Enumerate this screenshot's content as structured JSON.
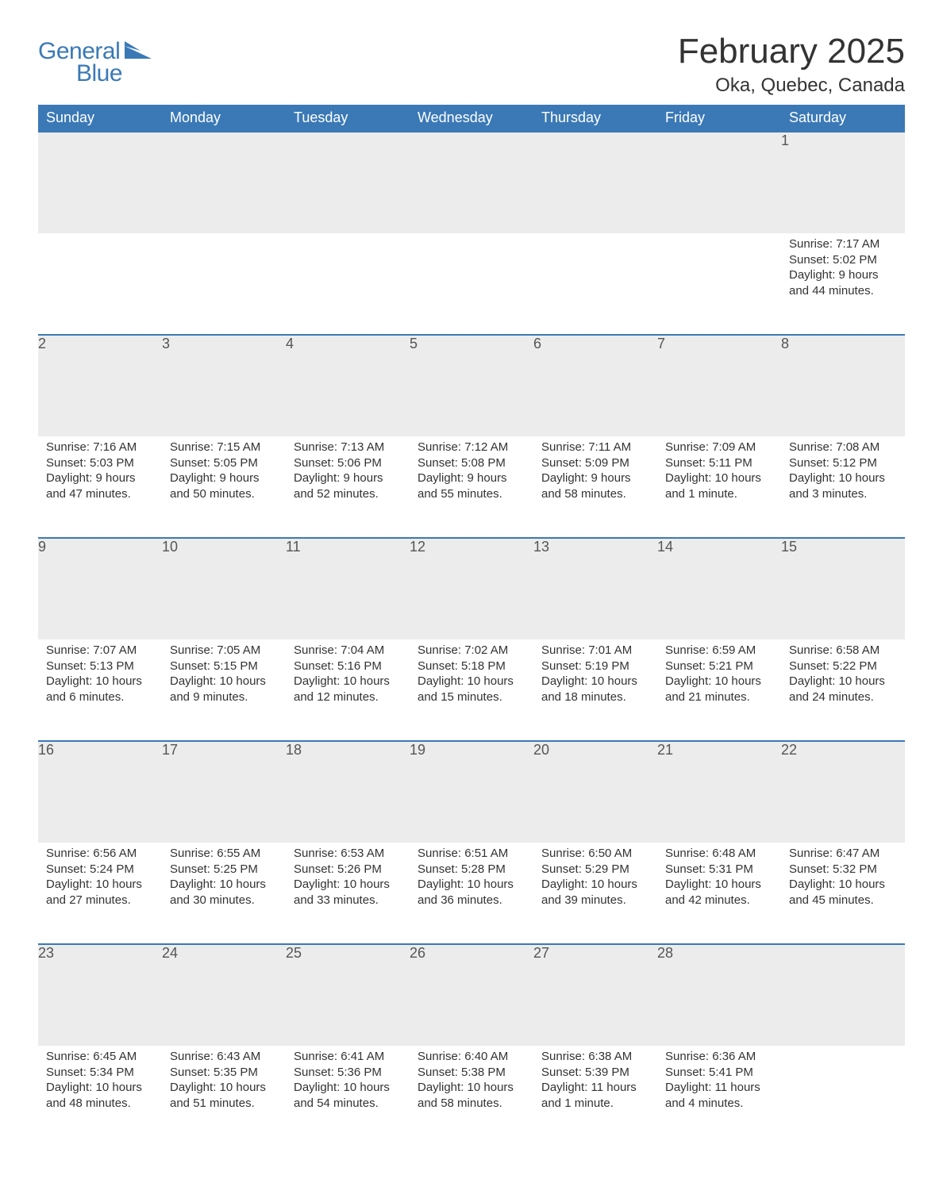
{
  "logo": {
    "word1": "General",
    "word2": "Blue"
  },
  "title": "February 2025",
  "location": "Oka, Quebec, Canada",
  "columns": [
    "Sunday",
    "Monday",
    "Tuesday",
    "Wednesday",
    "Thursday",
    "Friday",
    "Saturday"
  ],
  "colors": {
    "header_bg": "#3b79b6",
    "header_text": "#ffffff",
    "daynum_bg": "#ececec",
    "row_border": "#3b79b6",
    "body_text": "#333333",
    "logo_color": "#3b79b6"
  },
  "weeks": [
    [
      null,
      null,
      null,
      null,
      null,
      null,
      {
        "n": "1",
        "sr": "Sunrise: 7:17 AM",
        "ss": "Sunset: 5:02 PM",
        "dl": "Daylight: 9 hours and 44 minutes."
      }
    ],
    [
      {
        "n": "2",
        "sr": "Sunrise: 7:16 AM",
        "ss": "Sunset: 5:03 PM",
        "dl": "Daylight: 9 hours and 47 minutes."
      },
      {
        "n": "3",
        "sr": "Sunrise: 7:15 AM",
        "ss": "Sunset: 5:05 PM",
        "dl": "Daylight: 9 hours and 50 minutes."
      },
      {
        "n": "4",
        "sr": "Sunrise: 7:13 AM",
        "ss": "Sunset: 5:06 PM",
        "dl": "Daylight: 9 hours and 52 minutes."
      },
      {
        "n": "5",
        "sr": "Sunrise: 7:12 AM",
        "ss": "Sunset: 5:08 PM",
        "dl": "Daylight: 9 hours and 55 minutes."
      },
      {
        "n": "6",
        "sr": "Sunrise: 7:11 AM",
        "ss": "Sunset: 5:09 PM",
        "dl": "Daylight: 9 hours and 58 minutes."
      },
      {
        "n": "7",
        "sr": "Sunrise: 7:09 AM",
        "ss": "Sunset: 5:11 PM",
        "dl": "Daylight: 10 hours and 1 minute."
      },
      {
        "n": "8",
        "sr": "Sunrise: 7:08 AM",
        "ss": "Sunset: 5:12 PM",
        "dl": "Daylight: 10 hours and 3 minutes."
      }
    ],
    [
      {
        "n": "9",
        "sr": "Sunrise: 7:07 AM",
        "ss": "Sunset: 5:13 PM",
        "dl": "Daylight: 10 hours and 6 minutes."
      },
      {
        "n": "10",
        "sr": "Sunrise: 7:05 AM",
        "ss": "Sunset: 5:15 PM",
        "dl": "Daylight: 10 hours and 9 minutes."
      },
      {
        "n": "11",
        "sr": "Sunrise: 7:04 AM",
        "ss": "Sunset: 5:16 PM",
        "dl": "Daylight: 10 hours and 12 minutes."
      },
      {
        "n": "12",
        "sr": "Sunrise: 7:02 AM",
        "ss": "Sunset: 5:18 PM",
        "dl": "Daylight: 10 hours and 15 minutes."
      },
      {
        "n": "13",
        "sr": "Sunrise: 7:01 AM",
        "ss": "Sunset: 5:19 PM",
        "dl": "Daylight: 10 hours and 18 minutes."
      },
      {
        "n": "14",
        "sr": "Sunrise: 6:59 AM",
        "ss": "Sunset: 5:21 PM",
        "dl": "Daylight: 10 hours and 21 minutes."
      },
      {
        "n": "15",
        "sr": "Sunrise: 6:58 AM",
        "ss": "Sunset: 5:22 PM",
        "dl": "Daylight: 10 hours and 24 minutes."
      }
    ],
    [
      {
        "n": "16",
        "sr": "Sunrise: 6:56 AM",
        "ss": "Sunset: 5:24 PM",
        "dl": "Daylight: 10 hours and 27 minutes."
      },
      {
        "n": "17",
        "sr": "Sunrise: 6:55 AM",
        "ss": "Sunset: 5:25 PM",
        "dl": "Daylight: 10 hours and 30 minutes."
      },
      {
        "n": "18",
        "sr": "Sunrise: 6:53 AM",
        "ss": "Sunset: 5:26 PM",
        "dl": "Daylight: 10 hours and 33 minutes."
      },
      {
        "n": "19",
        "sr": "Sunrise: 6:51 AM",
        "ss": "Sunset: 5:28 PM",
        "dl": "Daylight: 10 hours and 36 minutes."
      },
      {
        "n": "20",
        "sr": "Sunrise: 6:50 AM",
        "ss": "Sunset: 5:29 PM",
        "dl": "Daylight: 10 hours and 39 minutes."
      },
      {
        "n": "21",
        "sr": "Sunrise: 6:48 AM",
        "ss": "Sunset: 5:31 PM",
        "dl": "Daylight: 10 hours and 42 minutes."
      },
      {
        "n": "22",
        "sr": "Sunrise: 6:47 AM",
        "ss": "Sunset: 5:32 PM",
        "dl": "Daylight: 10 hours and 45 minutes."
      }
    ],
    [
      {
        "n": "23",
        "sr": "Sunrise: 6:45 AM",
        "ss": "Sunset: 5:34 PM",
        "dl": "Daylight: 10 hours and 48 minutes."
      },
      {
        "n": "24",
        "sr": "Sunrise: 6:43 AM",
        "ss": "Sunset: 5:35 PM",
        "dl": "Daylight: 10 hours and 51 minutes."
      },
      {
        "n": "25",
        "sr": "Sunrise: 6:41 AM",
        "ss": "Sunset: 5:36 PM",
        "dl": "Daylight: 10 hours and 54 minutes."
      },
      {
        "n": "26",
        "sr": "Sunrise: 6:40 AM",
        "ss": "Sunset: 5:38 PM",
        "dl": "Daylight: 10 hours and 58 minutes."
      },
      {
        "n": "27",
        "sr": "Sunrise: 6:38 AM",
        "ss": "Sunset: 5:39 PM",
        "dl": "Daylight: 11 hours and 1 minute."
      },
      {
        "n": "28",
        "sr": "Sunrise: 6:36 AM",
        "ss": "Sunset: 5:41 PM",
        "dl": "Daylight: 11 hours and 4 minutes."
      },
      null
    ]
  ]
}
